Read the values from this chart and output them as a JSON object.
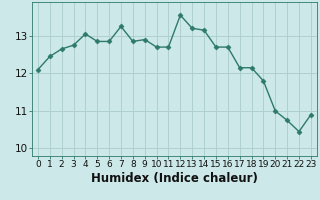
{
  "title": "",
  "xlabel": "Humidex (Indice chaleur)",
  "ylabel": "",
  "x": [
    0,
    1,
    2,
    3,
    4,
    5,
    6,
    7,
    8,
    9,
    10,
    11,
    12,
    13,
    14,
    15,
    16,
    17,
    18,
    19,
    20,
    21,
    22,
    23
  ],
  "y": [
    12.1,
    12.45,
    12.65,
    12.75,
    13.05,
    12.85,
    12.85,
    13.25,
    12.85,
    12.9,
    12.7,
    12.7,
    13.55,
    13.2,
    13.15,
    12.7,
    12.7,
    12.15,
    12.15,
    11.8,
    11.0,
    10.75,
    10.45,
    10.9
  ],
  "line_color": "#2d7a6a",
  "marker": "D",
  "marker_size": 2.5,
  "line_width": 1.0,
  "background_color": "#cce8e8",
  "grid_color": "#b0d0d0",
  "ylim": [
    9.8,
    13.9
  ],
  "yticks": [
    10,
    11,
    12,
    13
  ],
  "xtick_fontsize": 6.5,
  "ytick_fontsize": 7.5,
  "xlabel_fontsize": 8.5
}
